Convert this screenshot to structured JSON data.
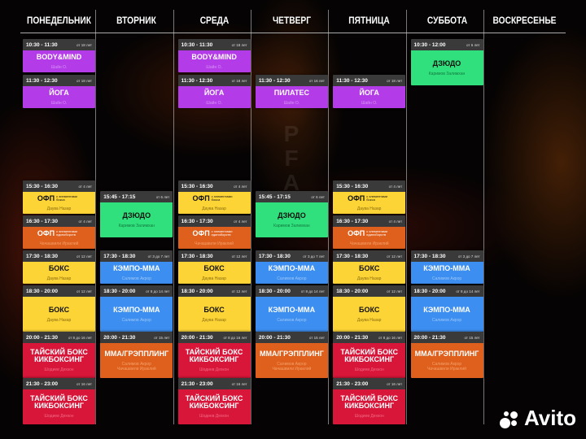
{
  "days": [
    "ПОНЕДЕЛЬНИК",
    "ВТОРНИК",
    "СРЕДА",
    "ЧЕТВЕРГ",
    "ПЯТНИЦА",
    "СУББОТА",
    "ВОСКРЕСЕНЬЕ"
  ],
  "colors": {
    "purple": "#b43ce8",
    "yellow": "#fcd436",
    "orange": "#df5f1c",
    "red": "#d8163a",
    "green": "#2fe07c",
    "blue": "#3c8ef0",
    "header": "#3a3a3a"
  },
  "schedule": [
    [
      {
        "time": "10:30 - 11:30",
        "age": "от 18 лет",
        "title": "BODY&MIND",
        "trainer": "Шайн О.",
        "color": "purple"
      },
      {
        "time": "11:30 - 12:30",
        "age": "от 18 лет",
        "title": "ЙОГА",
        "trainer": "Шайн О.",
        "color": "purple"
      },
      {
        "time": "15:30 - 16:30",
        "age": "от 4 лет",
        "title": "ОФП",
        "sub": "с элементами бокса",
        "trainer": "Даува Назар",
        "color": "yellow"
      },
      {
        "time": "16:30 - 17:30",
        "age": "от 4 лет",
        "title": "ОФП",
        "sub": "с элементами единоборств",
        "trainer": "Чачашвили Ираклий",
        "color": "orange"
      },
      {
        "time": "17:30 - 18:30",
        "age": "от 12 лет",
        "title": "БОКС",
        "trainer": "Даува Назар",
        "color": "yellow"
      },
      {
        "time": "18:30 - 20:00",
        "age": "от 12 лет",
        "title": "БОКС",
        "trainer": "Даува Назар",
        "color": "yellow"
      },
      {
        "time": "20:00 - 21:30",
        "age": "от 8 до 16 лет",
        "title": "ТАЙСКИЙ БОКС\nКИКБОКСИНГ",
        "trainer": "Шодиев Дехкон",
        "color": "red"
      },
      {
        "time": "21:30 - 23:00",
        "age": "от 16 лет",
        "title": "ТАЙСКИЙ БОКС\nКИКБОКСИНГ",
        "trainer": "Шодиев Дехкон",
        "color": "red"
      }
    ],
    [
      {
        "time": "15:45 - 17:15",
        "age": "от 6 лет",
        "title": "ДЗЮДО",
        "trainer": "Каримов Залимхан",
        "color": "green"
      },
      {
        "time": "17:30 - 18:30",
        "age": "от 3 до 7 лет",
        "title": "КЭМПО-ММА",
        "trainer": "Салимов Акрор",
        "color": "blue"
      },
      {
        "time": "18:30 - 20:00",
        "age": "от 8 до 14 лет",
        "title": "КЭМПО-ММА",
        "trainer": "Салимов Акрор",
        "color": "blue"
      },
      {
        "time": "20:00 - 21:30",
        "age": "от 15 лет",
        "title": "ММА/ГРЭППЛИНГ",
        "trainer": "Салимов Акрор\nЧачашвили Ираклий",
        "color": "orange"
      }
    ],
    [
      {
        "time": "10:30 - 11:30",
        "age": "от 18 лет",
        "title": "BODY&MIND",
        "trainer": "Шайн О.",
        "color": "purple"
      },
      {
        "time": "11:30 - 12:30",
        "age": "от 18 лет",
        "title": "ЙОГА",
        "trainer": "Шайн О.",
        "color": "purple"
      },
      {
        "time": "15:30 - 16:30",
        "age": "от 4 лет",
        "title": "ОФП",
        "sub": "с элементами бокса",
        "trainer": "Даува Назар",
        "color": "yellow"
      },
      {
        "time": "16:30 - 17:30",
        "age": "от 4 лет",
        "title": "ОФП",
        "sub": "с элементами единоборств",
        "trainer": "Чачашвили Ираклий",
        "color": "orange"
      },
      {
        "time": "17:30 - 18:30",
        "age": "от 12 лет",
        "title": "БОКС",
        "trainer": "Даува Назар",
        "color": "yellow"
      },
      {
        "time": "18:30 - 20:00",
        "age": "от 12 лет",
        "title": "БОКС",
        "trainer": "Даува Назар",
        "color": "yellow"
      },
      {
        "time": "20:00 - 21:30",
        "age": "от 8 до 16 лет",
        "title": "ТАЙСКИЙ БОКС\nКИКБОКСИНГ",
        "trainer": "Шодиев Дехкон",
        "color": "red"
      },
      {
        "time": "21:30 - 23:00",
        "age": "от 16 лет",
        "title": "ТАЙСКИЙ БОКС\nКИКБОКСИНГ",
        "trainer": "Шодиев Дехкон",
        "color": "red"
      }
    ],
    [
      {
        "time": "11:30 - 12:30",
        "age": "от 16 лет",
        "title": "ПИЛАТЕС",
        "trainer": "Шайн О.",
        "color": "purple"
      },
      {
        "time": "15:45 - 17:15",
        "age": "от 6 лет",
        "title": "ДЗЮДО",
        "trainer": "Каримов Залимхан",
        "color": "green"
      },
      {
        "time": "17:30 - 18:30",
        "age": "от 3 до 7 лет",
        "title": "КЭМПО-ММА",
        "trainer": "Салимов Акрор",
        "color": "blue"
      },
      {
        "time": "18:30 - 20:00",
        "age": "от 8 до 14 лет",
        "title": "КЭМПО-ММА",
        "trainer": "Салимов Акрор",
        "color": "blue"
      },
      {
        "time": "20:00 - 21:30",
        "age": "от 15 лет",
        "title": "ММА/ГРЭППЛИНГ",
        "trainer": "Салимов Акрор\nЧачашвили Ираклий",
        "color": "orange"
      }
    ],
    [
      {
        "time": "11:30 - 12:30",
        "age": "от 18 лет",
        "title": "ЙОГА",
        "trainer": "Шайн О.",
        "color": "purple"
      },
      {
        "time": "15:30 - 16:30",
        "age": "от 4 лет",
        "title": "ОФП",
        "sub": "с элементами бокса",
        "trainer": "Даува Назар",
        "color": "yellow"
      },
      {
        "time": "16:30 - 17:30",
        "age": "от 4 лет",
        "title": "ОФП",
        "sub": "с элементами единоборств",
        "trainer": "Чачашвили Ираклий",
        "color": "orange"
      },
      {
        "time": "17:30 - 18:30",
        "age": "от 12 лет",
        "title": "БОКС",
        "trainer": "Даува Назар",
        "color": "yellow"
      },
      {
        "time": "18:30 - 20:00",
        "age": "от 12 лет",
        "title": "БОКС",
        "trainer": "Даува Назар",
        "color": "yellow"
      },
      {
        "time": "20:00 - 21:30",
        "age": "от 8 до 16 лет",
        "title": "ТАЙСКИЙ БОКС\nКИКБОКСИНГ",
        "trainer": "Шодиев Дехкон",
        "color": "red"
      },
      {
        "time": "21:30 - 23:00",
        "age": "от 16 лет",
        "title": "ТАЙСКИЙ БОКС\nКИКБОКСИНГ",
        "trainer": "Шодиев Дехкон",
        "color": "red"
      }
    ],
    [
      {
        "time": "10:30 - 12:00",
        "age": "от 6 лет",
        "title": "ДЗЮДО",
        "trainer": "Каримов Залимхан",
        "color": "green"
      },
      {
        "time": "17:30 - 18:30",
        "age": "от 3 до 7 лет",
        "title": "КЭМПО-ММА",
        "trainer": "Салимов Акрор",
        "color": "blue"
      },
      {
        "time": "18:30 - 20:00",
        "age": "от 8 до 14 лет",
        "title": "КЭМПО-ММА",
        "trainer": "Салимов Акрор",
        "color": "blue"
      },
      {
        "time": "20:00 - 21:30",
        "age": "от 15 лет",
        "title": "ММА/ГРЭППЛИНГ",
        "trainer": "Салимов Акрор\nЧачашвили Ираклий",
        "color": "orange"
      }
    ],
    []
  ],
  "watermark": "Avito"
}
